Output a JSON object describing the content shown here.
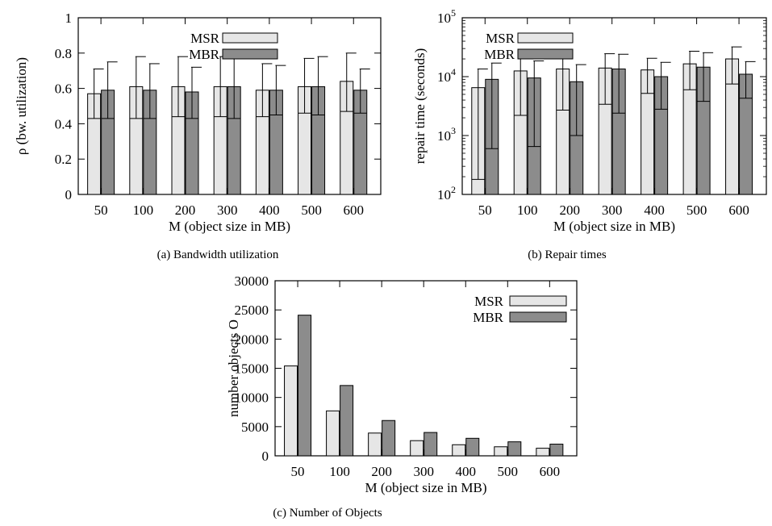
{
  "colors": {
    "msr": "#e6e6e6",
    "mbr": "#8c8c8c",
    "stroke": "#000000"
  },
  "chart_data": [
    {
      "id": "a",
      "type": "bar",
      "caption": "(a) Bandwidth utilization",
      "xlabel": "M (object size in MB)",
      "ylabel": "ρ (bw. utilization)",
      "ylim": [
        0,
        1
      ],
      "yscale": "linear",
      "yticks": [
        0,
        0.2,
        0.4,
        0.6,
        0.8,
        1
      ],
      "ytick_labels": [
        "0",
        "0.2",
        "0.4",
        "0.6",
        "0.8",
        "1"
      ],
      "categories": [
        "50",
        "100",
        "200",
        "300",
        "400",
        "500",
        "600"
      ],
      "series": [
        {
          "name": "MSR",
          "values": [
            0.57,
            0.61,
            0.61,
            0.61,
            0.59,
            0.61,
            0.64
          ],
          "err_low": [
            0.43,
            0.43,
            0.44,
            0.44,
            0.44,
            0.46,
            0.47
          ],
          "err_high": [
            0.71,
            0.78,
            0.78,
            0.78,
            0.74,
            0.77,
            0.8
          ]
        },
        {
          "name": "MBR",
          "values": [
            0.59,
            0.59,
            0.58,
            0.61,
            0.59,
            0.61,
            0.59
          ],
          "err_low": [
            0.43,
            0.43,
            0.43,
            0.43,
            0.45,
            0.45,
            0.46
          ],
          "err_high": [
            0.75,
            0.74,
            0.72,
            0.77,
            0.73,
            0.78,
            0.71
          ]
        }
      ],
      "legend": "top-center"
    },
    {
      "id": "b",
      "type": "bar",
      "caption": "(b) Repair times",
      "xlabel": "M (object size in MB)",
      "ylabel": "repair time (seconds)",
      "ylim": [
        100,
        100000
      ],
      "yscale": "log",
      "yticks": [
        100,
        1000,
        10000,
        100000
      ],
      "ytick_labels": [
        {
          "base": "10",
          "exp": "2"
        },
        {
          "base": "10",
          "exp": "3"
        },
        {
          "base": "10",
          "exp": "4"
        },
        {
          "base": "10",
          "exp": "5"
        }
      ],
      "categories": [
        "50",
        "100",
        "200",
        "300",
        "400",
        "500",
        "600"
      ],
      "series": [
        {
          "name": "MSR",
          "values": [
            6500,
            12500,
            13500,
            14000,
            13000,
            16500,
            20000
          ],
          "err_low": [
            180,
            2200,
            2700,
            3400,
            5200,
            6000,
            7500
          ],
          "err_high": [
            13500,
            22000,
            24000,
            24500,
            20500,
            27000,
            32000
          ]
        },
        {
          "name": "MBR",
          "values": [
            9000,
            9500,
            8200,
            13500,
            10000,
            14500,
            11000
          ],
          "err_low": [
            600,
            650,
            1000,
            2400,
            2800,
            3800,
            4300
          ],
          "err_high": [
            17000,
            18500,
            16000,
            24000,
            17500,
            25500,
            18000
          ]
        }
      ],
      "legend": "top-left"
    },
    {
      "id": "c",
      "type": "bar",
      "caption": "(c) Number of Objects",
      "xlabel": "M (object size in MB)",
      "ylabel": "number objects O",
      "ylim": [
        0,
        30000
      ],
      "yscale": "linear",
      "yticks": [
        0,
        5000,
        10000,
        15000,
        20000,
        25000,
        30000
      ],
      "ytick_labels": [
        "0",
        "5000",
        "10000",
        "15000",
        "20000",
        "25000",
        "30000"
      ],
      "categories": [
        "50",
        "100",
        "200",
        "300",
        "400",
        "500",
        "600"
      ],
      "series": [
        {
          "name": "MSR",
          "values": [
            15400,
            7700,
            3900,
            2600,
            1900,
            1550,
            1300
          ]
        },
        {
          "name": "MBR",
          "values": [
            24100,
            12050,
            6050,
            4000,
            3000,
            2400,
            2000
          ]
        }
      ],
      "legend": "top-right"
    }
  ]
}
